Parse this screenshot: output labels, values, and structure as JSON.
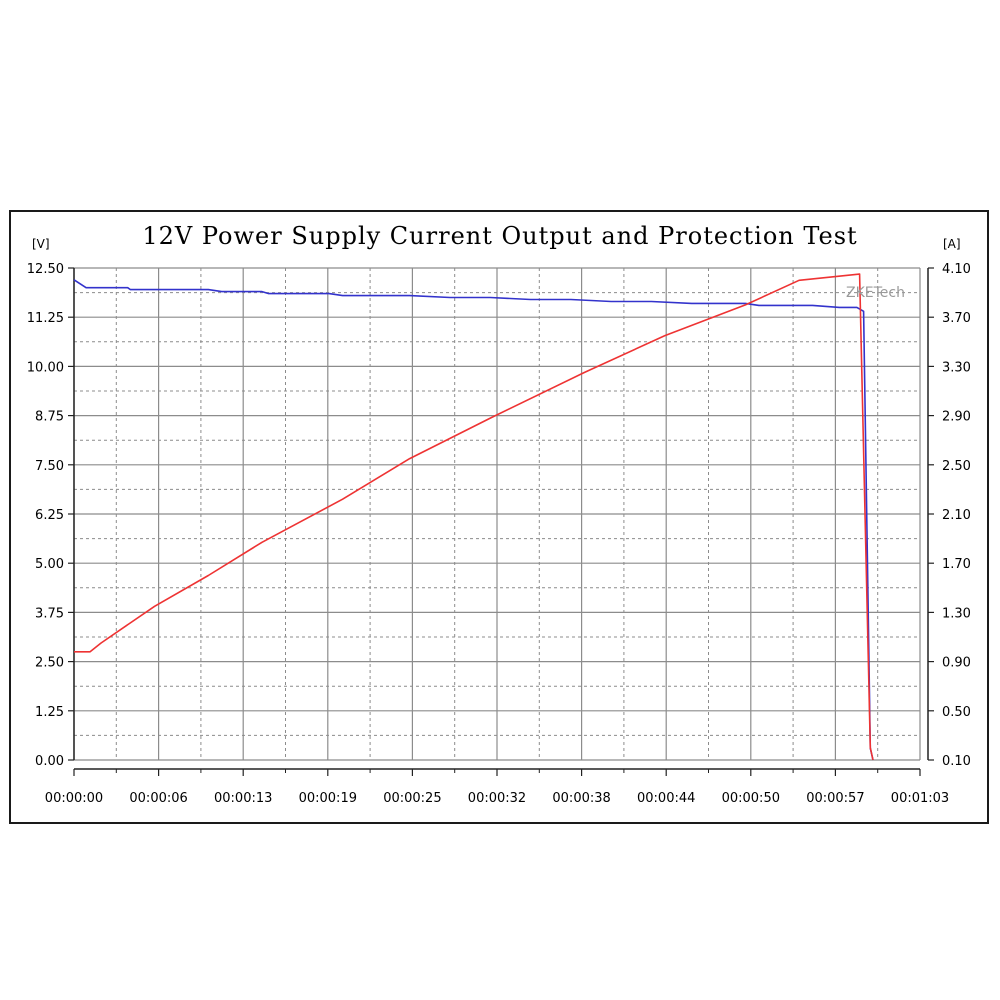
{
  "chart_data": {
    "type": "line",
    "title": "12V Power Supply Current Output and Protection Test",
    "watermark": "ZKETech",
    "y_left": {
      "unit": "[V]",
      "ylim": [
        0,
        12.5
      ],
      "ticks": [
        "0.00",
        "1.25",
        "2.50",
        "3.75",
        "5.00",
        "6.25",
        "7.50",
        "8.75",
        "10.00",
        "11.25",
        "12.50"
      ]
    },
    "y_right": {
      "unit": "[A]",
      "ylim": [
        0.1,
        4.1
      ],
      "ticks": [
        "0.10",
        "0.50",
        "0.90",
        "1.30",
        "1.70",
        "2.10",
        "2.50",
        "2.90",
        "3.30",
        "3.70",
        "4.10"
      ]
    },
    "x": {
      "xlim_seconds": [
        0,
        63
      ],
      "ticks": [
        "00:00:00",
        "00:00:06",
        "00:00:13",
        "00:00:19",
        "00:00:25",
        "00:00:32",
        "00:00:38",
        "00:00:44",
        "00:00:50",
        "00:00:57",
        "00:01:03"
      ]
    },
    "grid": true,
    "series": [
      {
        "axis": "left",
        "color": "#3333cc",
        "points": [
          [
            0,
            12.2
          ],
          [
            0.9,
            12.0
          ],
          [
            4,
            12.0
          ],
          [
            4.2,
            11.95
          ],
          [
            10,
            11.95
          ],
          [
            11,
            11.9
          ],
          [
            14,
            11.9
          ],
          [
            14.5,
            11.85
          ],
          [
            19,
            11.85
          ],
          [
            20,
            11.8
          ],
          [
            25,
            11.8
          ],
          [
            28,
            11.75
          ],
          [
            31,
            11.75
          ],
          [
            34,
            11.7
          ],
          [
            37,
            11.7
          ],
          [
            40,
            11.65
          ],
          [
            43,
            11.65
          ],
          [
            46,
            11.6
          ],
          [
            50,
            11.6
          ],
          [
            51,
            11.55
          ],
          [
            55,
            11.55
          ],
          [
            57,
            11.5
          ],
          [
            58.3,
            11.5
          ],
          [
            58.8,
            11.4
          ],
          [
            59.3,
            0.3
          ],
          [
            59.5,
            0
          ]
        ]
      },
      {
        "axis": "right",
        "color": "#ee3333",
        "points": [
          [
            0,
            0.98
          ],
          [
            1.2,
            0.98
          ],
          [
            2,
            1.05
          ],
          [
            6,
            1.35
          ],
          [
            10,
            1.6
          ],
          [
            14,
            1.87
          ],
          [
            20,
            2.22
          ],
          [
            25,
            2.55
          ],
          [
            31,
            2.88
          ],
          [
            38,
            3.25
          ],
          [
            44,
            3.55
          ],
          [
            50,
            3.8
          ],
          [
            54,
            4.0
          ],
          [
            58.5,
            4.05
          ],
          [
            59.3,
            0.2
          ],
          [
            59.5,
            0.1
          ]
        ]
      }
    ]
  }
}
